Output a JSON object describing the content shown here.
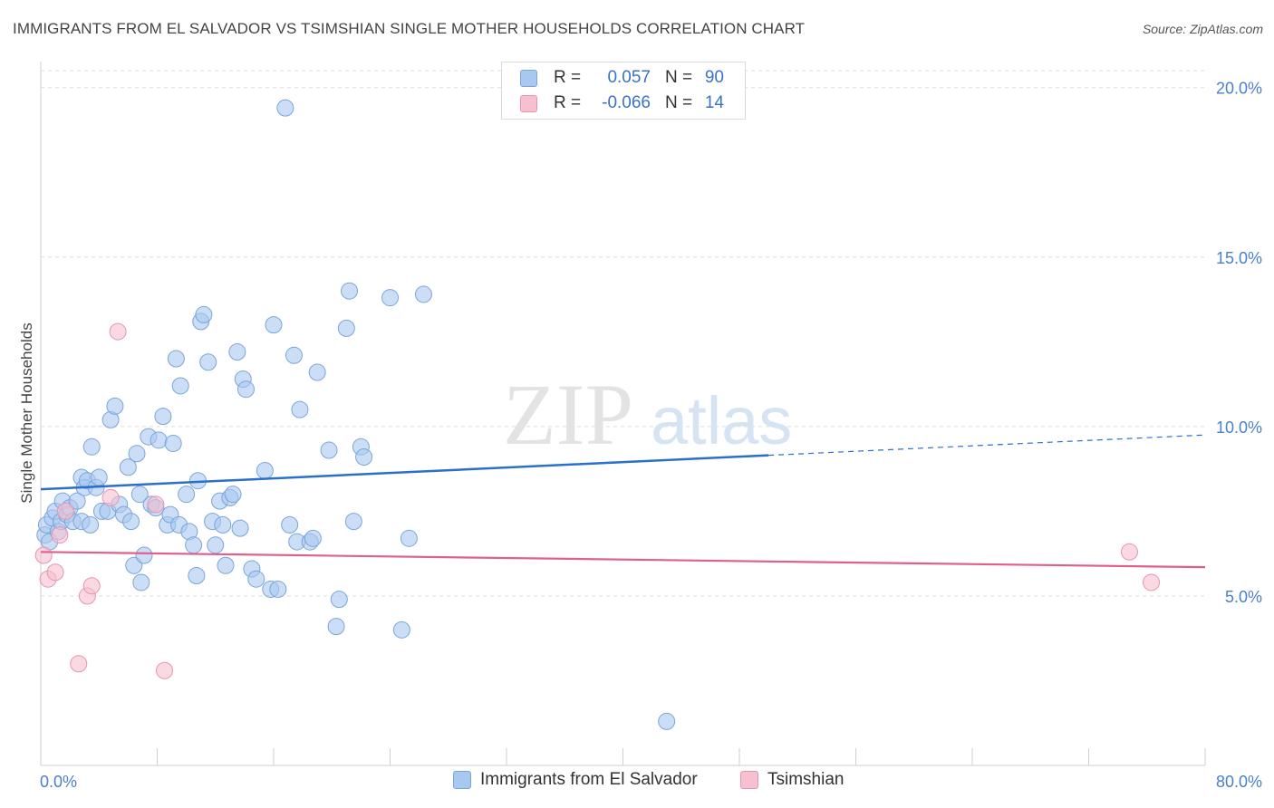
{
  "header": {
    "title": "IMMIGRANTS FROM EL SALVADOR VS TSIMSHIAN SINGLE MOTHER HOUSEHOLDS CORRELATION CHART",
    "source": "Source: ZipAtlas.com"
  },
  "watermark": {
    "part1": "ZIP",
    "part2": "atlas"
  },
  "legend": {
    "series": [
      {
        "r_label": "R =",
        "r_value": "0.057",
        "n_label": "N =",
        "n_value": "90"
      },
      {
        "r_label": "R =",
        "r_value": "-0.066",
        "n_label": "N =",
        "n_value": "14"
      }
    ]
  },
  "colors": {
    "blue_fill": "#a9c8ef",
    "blue_stroke": "#7aa5dc",
    "blue_line": "#2a6fcc",
    "pink_fill": "#f6c0d1",
    "pink_stroke": "#e993b0",
    "pink_line": "#e0608c",
    "axis_label": "#4a7fcf",
    "grid": "#dcdcdc"
  },
  "chart_data": {
    "type": "scatter",
    "title": "IMMIGRANTS FROM EL SALVADOR VS TSIMSHIAN SINGLE MOTHER HOUSEHOLDS CORRELATION CHART",
    "xlabel": "",
    "ylabel": "Single Mother Households",
    "xlim": [
      0,
      80
    ],
    "ylim": [
      0,
      20.5
    ],
    "x_tick_labels": [
      "0.0%",
      "80.0%"
    ],
    "y_ticks": [
      5,
      10,
      15,
      20
    ],
    "y_tick_labels": [
      "5.0%",
      "10.0%",
      "15.0%",
      "20.0%"
    ],
    "grid": "horizontal dashed",
    "legend_position": "top-center",
    "series": [
      {
        "name": "Immigrants from El Salvador",
        "color": "#a9c8ef",
        "trend": {
          "x": [
            0,
            50
          ],
          "y": [
            8.15,
            9.15
          ],
          "dashed_extension_to_x": 80,
          "dashed_end_y": 9.75
        },
        "points": [
          [
            0.3,
            6.8
          ],
          [
            0.4,
            7.1
          ],
          [
            0.6,
            6.6
          ],
          [
            0.8,
            7.3
          ],
          [
            1.0,
            7.5
          ],
          [
            1.2,
            6.9
          ],
          [
            1.4,
            7.2
          ],
          [
            1.5,
            7.8
          ],
          [
            1.8,
            7.4
          ],
          [
            2.0,
            7.6
          ],
          [
            2.2,
            7.2
          ],
          [
            2.5,
            7.8
          ],
          [
            2.8,
            7.2
          ],
          [
            2.8,
            8.5
          ],
          [
            3.0,
            8.2
          ],
          [
            3.2,
            8.4
          ],
          [
            3.4,
            7.1
          ],
          [
            3.5,
            9.4
          ],
          [
            3.8,
            8.2
          ],
          [
            4.0,
            8.5
          ],
          [
            4.2,
            7.5
          ],
          [
            4.6,
            7.5
          ],
          [
            4.8,
            10.2
          ],
          [
            5.1,
            10.6
          ],
          [
            5.4,
            7.7
          ],
          [
            5.7,
            7.4
          ],
          [
            6.0,
            8.8
          ],
          [
            6.2,
            7.2
          ],
          [
            6.4,
            5.9
          ],
          [
            6.6,
            9.2
          ],
          [
            6.8,
            8.0
          ],
          [
            6.9,
            5.4
          ],
          [
            7.1,
            6.2
          ],
          [
            7.4,
            9.7
          ],
          [
            7.6,
            7.7
          ],
          [
            7.9,
            7.6
          ],
          [
            8.1,
            9.6
          ],
          [
            8.4,
            10.3
          ],
          [
            8.7,
            7.1
          ],
          [
            8.9,
            7.4
          ],
          [
            9.1,
            9.5
          ],
          [
            9.3,
            12.0
          ],
          [
            9.5,
            7.1
          ],
          [
            9.6,
            11.2
          ],
          [
            10.0,
            8.0
          ],
          [
            10.2,
            6.9
          ],
          [
            10.5,
            6.5
          ],
          [
            10.7,
            5.6
          ],
          [
            10.8,
            8.4
          ],
          [
            11.0,
            13.1
          ],
          [
            11.2,
            13.3
          ],
          [
            11.5,
            11.9
          ],
          [
            11.8,
            7.2
          ],
          [
            12.0,
            6.5
          ],
          [
            12.3,
            7.8
          ],
          [
            12.5,
            7.1
          ],
          [
            12.7,
            5.9
          ],
          [
            13.0,
            7.9
          ],
          [
            13.2,
            8.0
          ],
          [
            13.5,
            12.2
          ],
          [
            13.7,
            7.0
          ],
          [
            13.9,
            11.4
          ],
          [
            14.1,
            11.1
          ],
          [
            14.5,
            5.8
          ],
          [
            14.8,
            5.5
          ],
          [
            15.4,
            8.7
          ],
          [
            15.8,
            5.2
          ],
          [
            16.0,
            13.0
          ],
          [
            16.3,
            5.2
          ],
          [
            16.8,
            19.4
          ],
          [
            17.1,
            7.1
          ],
          [
            17.4,
            12.1
          ],
          [
            17.6,
            6.6
          ],
          [
            17.8,
            10.5
          ],
          [
            18.5,
            6.6
          ],
          [
            18.7,
            6.7
          ],
          [
            19.0,
            11.6
          ],
          [
            19.8,
            9.3
          ],
          [
            20.3,
            4.1
          ],
          [
            20.5,
            4.9
          ],
          [
            21.0,
            12.9
          ],
          [
            21.2,
            14.0
          ],
          [
            21.5,
            7.2
          ],
          [
            22.0,
            9.4
          ],
          [
            22.2,
            9.1
          ],
          [
            24.0,
            13.8
          ],
          [
            24.8,
            4.0
          ],
          [
            25.3,
            6.7
          ],
          [
            26.3,
            13.9
          ],
          [
            43.0,
            1.3
          ]
        ]
      },
      {
        "name": "Tsimshian",
        "color": "#f6c0d1",
        "trend": {
          "x": [
            0,
            80
          ],
          "y": [
            6.3,
            5.85
          ]
        },
        "points": [
          [
            0.2,
            6.2
          ],
          [
            0.5,
            5.5
          ],
          [
            1.0,
            5.7
          ],
          [
            1.3,
            6.8
          ],
          [
            1.7,
            7.5
          ],
          [
            2.6,
            3.0
          ],
          [
            3.2,
            5.0
          ],
          [
            3.5,
            5.3
          ],
          [
            4.8,
            7.9
          ],
          [
            5.3,
            12.8
          ],
          [
            7.9,
            7.7
          ],
          [
            8.5,
            2.8
          ],
          [
            74.8,
            6.3
          ],
          [
            76.3,
            5.4
          ]
        ]
      }
    ]
  },
  "bottom_legend": [
    {
      "label": "Immigrants from El Salvador"
    },
    {
      "label": "Tsimshian"
    }
  ]
}
